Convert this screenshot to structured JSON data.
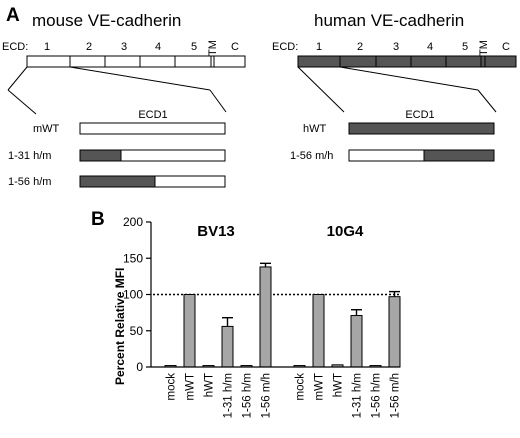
{
  "panel_a": {
    "label": "A",
    "mouse": {
      "title": "mouse VE-cadherin",
      "ecd_label": "ECD:",
      "domains": [
        "1",
        "2",
        "3",
        "4",
        "5"
      ],
      "tm": "TM",
      "c": "C",
      "zoom_label": "ECD1",
      "constructs": [
        {
          "name": "mWT",
          "mouse_fraction_start": 0.0,
          "human_fraction": 0.0
        },
        {
          "name": "1-31 h/m",
          "human_fraction": 0.28
        },
        {
          "name": "1-56 h/m",
          "human_fraction": 0.52
        }
      ],
      "color": "#ffffff"
    },
    "human": {
      "title": "human VE-cadherin",
      "ecd_label": "ECD:",
      "domains": [
        "1",
        "2",
        "3",
        "4",
        "5"
      ],
      "tm": "TM",
      "c": "C",
      "zoom_label": "ECD1",
      "constructs": [
        {
          "name": "hWT",
          "mouse_fraction": 0.0
        },
        {
          "name": "1-56 m/h",
          "mouse_fraction": 0.52
        }
      ],
      "color": "#555555"
    }
  },
  "panel_b": {
    "label": "B",
    "chart_data": {
      "type": "bar",
      "ylabel": "Percent Relative MFI",
      "yticks": [
        0,
        50,
        100,
        150,
        200
      ],
      "ylim": [
        0,
        200
      ],
      "reference_line": 100,
      "categories": [
        "mock",
        "mWT",
        "hWT",
        "1-31 h/m",
        "1-56 h/m",
        "1-56 m/h"
      ],
      "groups": [
        {
          "name": "BV13",
          "values": [
            2,
            100,
            2,
            56,
            2,
            138
          ],
          "errors": [
            0,
            0,
            0,
            12,
            0,
            5
          ]
        },
        {
          "name": "10G4",
          "values": [
            2,
            100,
            3,
            71,
            2,
            97
          ],
          "errors": [
            0,
            0,
            0,
            8,
            0,
            7
          ]
        }
      ]
    }
  }
}
